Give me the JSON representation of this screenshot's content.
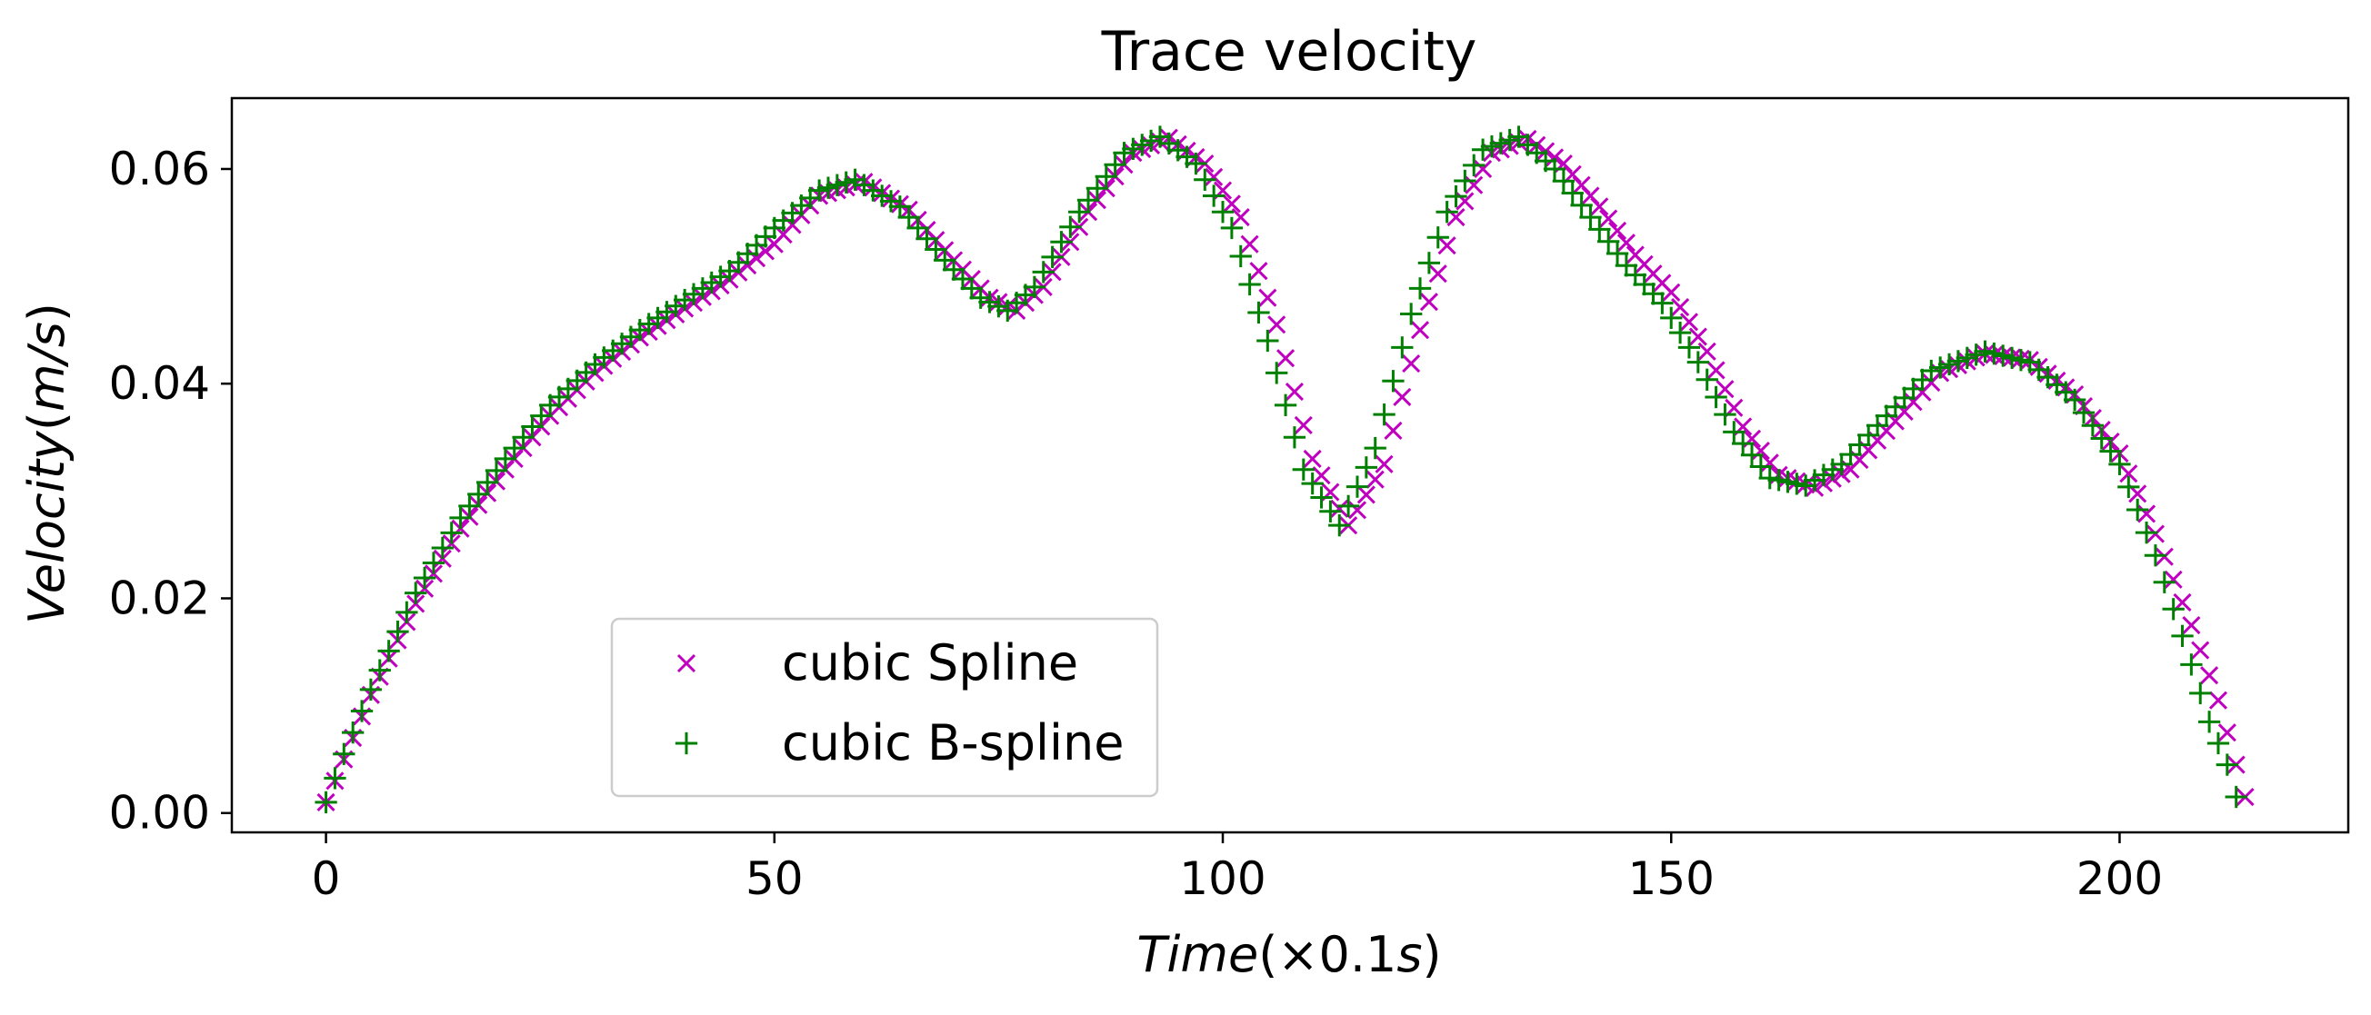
{
  "chart_data": {
    "type": "scatter",
    "title": "Trace velocity",
    "xlabel": "Time(×0.1s)",
    "xlabel_parts": {
      "var": "Time",
      "rest": "(×0.1",
      "unit_var": "s",
      "close": ")"
    },
    "ylabel": "Velocity(m/s)",
    "ylabel_parts": {
      "var": "Velocity",
      "rest": "(",
      "unit_var": "m/s",
      "close": ")"
    },
    "xlim": [
      -10.5,
      225.5
    ],
    "ylim": [
      -0.0018,
      0.0666
    ],
    "x_ticks": [
      0,
      50,
      100,
      150,
      200
    ],
    "x_tick_labels": [
      "0",
      "50",
      "100",
      "150",
      "200"
    ],
    "y_ticks": [
      0,
      0.02,
      0.04,
      0.06
    ],
    "y_tick_labels": [
      "0.00",
      "0.02",
      "0.04",
      "0.06"
    ],
    "grid": false,
    "legend_position": "lower-left",
    "x_start": 0,
    "x_step": 1,
    "series": [
      {
        "name": "cubic Spline",
        "marker": "x",
        "color": "#bf00bf",
        "anchors": [
          [
            0,
            0.001
          ],
          [
            2,
            0.005
          ],
          [
            5,
            0.011
          ],
          [
            10,
            0.0195
          ],
          [
            15,
            0.0265
          ],
          [
            20,
            0.032
          ],
          [
            25,
            0.037
          ],
          [
            30,
            0.041
          ],
          [
            35,
            0.0443
          ],
          [
            40,
            0.047
          ],
          [
            45,
            0.0497
          ],
          [
            50,
            0.053
          ],
          [
            55,
            0.0575
          ],
          [
            60,
            0.0588
          ],
          [
            65,
            0.0562
          ],
          [
            70,
            0.0515
          ],
          [
            74,
            0.048
          ],
          [
            77,
            0.0468
          ],
          [
            80,
            0.049
          ],
          [
            85,
            0.056
          ],
          [
            90,
            0.0615
          ],
          [
            94,
            0.0629
          ],
          [
            98,
            0.0605
          ],
          [
            102,
            0.0555
          ],
          [
            106,
            0.0455
          ],
          [
            110,
            0.033
          ],
          [
            114,
            0.0268
          ],
          [
            118,
            0.0325
          ],
          [
            122,
            0.045
          ],
          [
            126,
            0.0555
          ],
          [
            130,
            0.0615
          ],
          [
            134,
            0.0628
          ],
          [
            138,
            0.0605
          ],
          [
            142,
            0.0565
          ],
          [
            146,
            0.052
          ],
          [
            150,
            0.0485
          ],
          [
            154,
            0.043
          ],
          [
            158,
            0.036
          ],
          [
            162,
            0.0315
          ],
          [
            166,
            0.0303
          ],
          [
            170,
            0.032
          ],
          [
            175,
            0.0365
          ],
          [
            180,
            0.041
          ],
          [
            185,
            0.0428
          ],
          [
            190,
            0.0422
          ],
          [
            195,
            0.039
          ],
          [
            200,
            0.0335
          ],
          [
            204,
            0.026
          ],
          [
            208,
            0.0175
          ],
          [
            211,
            0.0105
          ],
          [
            214,
            0.0015
          ]
        ]
      },
      {
        "name": "cubic B-spline",
        "marker": "+",
        "color": "#008000",
        "anchors": [
          [
            0,
            0.001
          ],
          [
            2,
            0.0055
          ],
          [
            5,
            0.0115
          ],
          [
            10,
            0.0205
          ],
          [
            15,
            0.0275
          ],
          [
            20,
            0.033
          ],
          [
            25,
            0.038
          ],
          [
            30,
            0.0418
          ],
          [
            35,
            0.045
          ],
          [
            40,
            0.0478
          ],
          [
            45,
            0.0505
          ],
          [
            50,
            0.0545
          ],
          [
            55,
            0.058
          ],
          [
            59,
            0.059
          ],
          [
            64,
            0.0565
          ],
          [
            69,
            0.0515
          ],
          [
            73,
            0.048
          ],
          [
            76,
            0.0468
          ],
          [
            79,
            0.049
          ],
          [
            84,
            0.056
          ],
          [
            89,
            0.0615
          ],
          [
            93,
            0.063
          ],
          [
            97,
            0.0605
          ],
          [
            101,
            0.0545
          ],
          [
            105,
            0.044
          ],
          [
            109,
            0.032
          ],
          [
            113,
            0.0268
          ],
          [
            117,
            0.034
          ],
          [
            121,
            0.0465
          ],
          [
            125,
            0.056
          ],
          [
            129,
            0.0618
          ],
          [
            133,
            0.063
          ],
          [
            137,
            0.06
          ],
          [
            141,
            0.0555
          ],
          [
            145,
            0.051
          ],
          [
            149,
            0.0475
          ],
          [
            153,
            0.042
          ],
          [
            157,
            0.0355
          ],
          [
            161,
            0.0312
          ],
          [
            165,
            0.0305
          ],
          [
            169,
            0.0325
          ],
          [
            174,
            0.037
          ],
          [
            179,
            0.0412
          ],
          [
            185,
            0.043
          ],
          [
            190,
            0.042
          ],
          [
            195,
            0.0385
          ],
          [
            200,
            0.0325
          ],
          [
            204,
            0.024
          ],
          [
            207,
            0.0165
          ],
          [
            210,
            0.0085
          ],
          [
            212,
            0.0045
          ],
          [
            213,
            0.0015
          ]
        ]
      }
    ]
  }
}
